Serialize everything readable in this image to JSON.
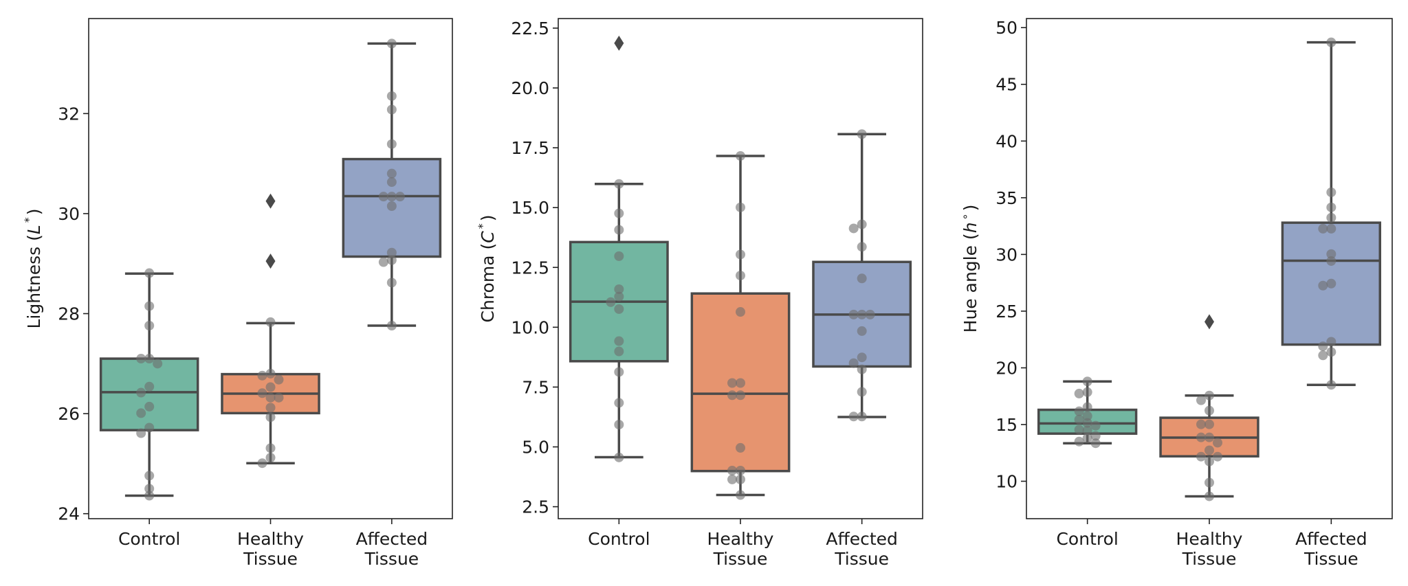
{
  "figure": {
    "style": {
      "palette": [
        "#72b6a1",
        "#e6946f",
        "#93a3c5"
      ],
      "edge_color": "#4a4a4a",
      "point_color": "#6e6e6e",
      "background": "#ffffff"
    }
  },
  "chart_data": [
    {
      "type": "box",
      "panel": "lightness",
      "title": "",
      "xlabel": "",
      "ylabel": "Lightness (L*)",
      "ylabel_parts": {
        "prefix": "Lightness (",
        "symbol": "L",
        "sup": "*",
        "suffix": ")"
      },
      "ylim": [
        23.9,
        33.9
      ],
      "yticks": [
        24,
        26,
        28,
        30,
        32
      ],
      "ytick_labels": [
        "24",
        "26",
        "28",
        "30",
        "32"
      ],
      "grid": false,
      "categories": [
        "Control",
        "Healthy Tissue",
        "Affected Tissue"
      ],
      "category_lines": [
        [
          "Control"
        ],
        [
          "Healthy",
          "Tissue"
        ],
        [
          "Affected",
          "Tissue"
        ]
      ],
      "boxes": [
        {
          "whislo": 24.36,
          "q1": 25.67,
          "med": 26.43,
          "q3": 27.1,
          "whishi": 28.8,
          "fliers": []
        },
        {
          "whislo": 25.01,
          "q1": 26.01,
          "med": 26.4,
          "q3": 26.79,
          "whishi": 27.81,
          "fliers": [
            30.25,
            29.05
          ]
        },
        {
          "whislo": 27.76,
          "q1": 29.14,
          "med": 30.35,
          "q3": 31.09,
          "whishi": 33.4,
          "fliers": []
        }
      ],
      "points": [
        [
          28.81,
          28.15,
          27.76,
          27.1,
          27.1,
          27.0,
          26.54,
          26.42,
          26.14,
          26.01,
          25.72,
          25.61,
          24.76,
          24.5,
          24.36
        ],
        [
          27.83,
          26.8,
          26.76,
          26.68,
          26.53,
          26.41,
          26.32,
          26.32,
          26.12,
          25.93,
          25.31,
          25.12,
          25.01
        ],
        [
          33.4,
          32.35,
          32.08,
          31.39,
          30.8,
          30.63,
          30.34,
          30.34,
          30.34,
          30.15,
          29.22,
          29.07,
          29.03,
          28.62,
          27.76
        ]
      ]
    },
    {
      "type": "box",
      "panel": "chroma",
      "title": "",
      "xlabel": "",
      "ylabel": "Chroma (C*)",
      "ylabel_parts": {
        "prefix": "Chroma (",
        "symbol": "C",
        "sup": "*",
        "suffix": ")"
      },
      "ylim": [
        2.0,
        22.9
      ],
      "yticks": [
        2.5,
        5.0,
        7.5,
        10.0,
        12.5,
        15.0,
        17.5,
        20.0,
        22.5
      ],
      "ytick_labels": [
        "2.5",
        "5.0",
        "7.5",
        "10.0",
        "12.5",
        "15.0",
        "17.5",
        "20.0",
        "22.5"
      ],
      "grid": false,
      "categories": [
        "Control",
        "Healthy Tissue",
        "Affected Tissue"
      ],
      "category_lines": [
        [
          "Control"
        ],
        [
          "Healthy",
          "Tissue"
        ],
        [
          "Affected",
          "Tissue"
        ]
      ],
      "boxes": [
        {
          "whislo": 4.57,
          "q1": 8.58,
          "med": 11.07,
          "q3": 13.56,
          "whishi": 15.99,
          "fliers": [
            21.87
          ]
        },
        {
          "whislo": 2.99,
          "q1": 3.99,
          "med": 7.22,
          "q3": 11.41,
          "whishi": 17.16,
          "fliers": []
        },
        {
          "whislo": 6.25,
          "q1": 8.36,
          "med": 10.53,
          "q3": 12.73,
          "whishi": 18.07,
          "fliers": []
        }
      ],
      "points": [
        [
          15.99,
          14.76,
          14.07,
          12.97,
          11.59,
          11.28,
          11.05,
          10.76,
          9.42,
          8.99,
          8.13,
          6.84,
          5.93,
          4.56
        ],
        [
          17.16,
          15.01,
          13.04,
          12.16,
          10.64,
          7.67,
          7.67,
          7.16,
          7.16,
          4.96,
          4.01,
          4.01,
          3.64,
          3.64,
          2.99
        ],
        [
          18.07,
          14.3,
          14.13,
          13.36,
          12.04,
          10.53,
          10.53,
          10.53,
          9.84,
          8.74,
          8.5,
          8.24,
          7.3,
          6.27,
          6.27
        ]
      ]
    },
    {
      "type": "box",
      "panel": "hue",
      "title": "",
      "xlabel": "",
      "ylabel": "Hue angle (h°)",
      "ylabel_parts": {
        "prefix": "Hue angle (",
        "symbol": "h",
        "sup": "∘",
        "suffix": ")"
      },
      "ylim": [
        6.7,
        50.8
      ],
      "yticks": [
        10,
        15,
        20,
        25,
        30,
        35,
        40,
        45,
        50
      ],
      "ytick_labels": [
        "10",
        "15",
        "20",
        "25",
        "30",
        "35",
        "40",
        "45",
        "50"
      ],
      "grid": false,
      "categories": [
        "Control",
        "Healthy Tissue",
        "Affected Tissue"
      ],
      "category_lines": [
        [
          "Control"
        ],
        [
          "Healthy",
          "Tissue"
        ],
        [
          "Affected",
          "Tissue"
        ]
      ],
      "boxes": [
        {
          "whislo": 13.35,
          "q1": 14.2,
          "med": 15.1,
          "q3": 16.3,
          "whishi": 18.8,
          "fliers": []
        },
        {
          "whislo": 8.67,
          "q1": 12.2,
          "med": 13.85,
          "q3": 15.6,
          "whishi": 17.56,
          "fliers": [
            24.06
          ]
        },
        {
          "whislo": 18.5,
          "q1": 22.05,
          "med": 29.45,
          "q3": 32.8,
          "whishi": 48.7,
          "fliers": []
        }
      ],
      "points": [
        [
          18.8,
          17.86,
          17.73,
          16.54,
          16.17,
          15.75,
          15.44,
          15.14,
          14.9,
          14.55,
          14.48,
          14.0,
          13.8,
          13.5,
          13.35
        ],
        [
          17.56,
          17.14,
          16.23,
          15.02,
          15.02,
          13.87,
          13.87,
          13.4,
          12.73,
          12.17,
          12.17,
          11.75,
          9.88,
          8.67
        ],
        [
          48.7,
          35.48,
          34.15,
          33.24,
          32.27,
          32.27,
          30.03,
          29.42,
          27.43,
          27.25,
          22.3,
          21.9,
          21.4,
          21.1,
          18.5
        ]
      ]
    }
  ]
}
